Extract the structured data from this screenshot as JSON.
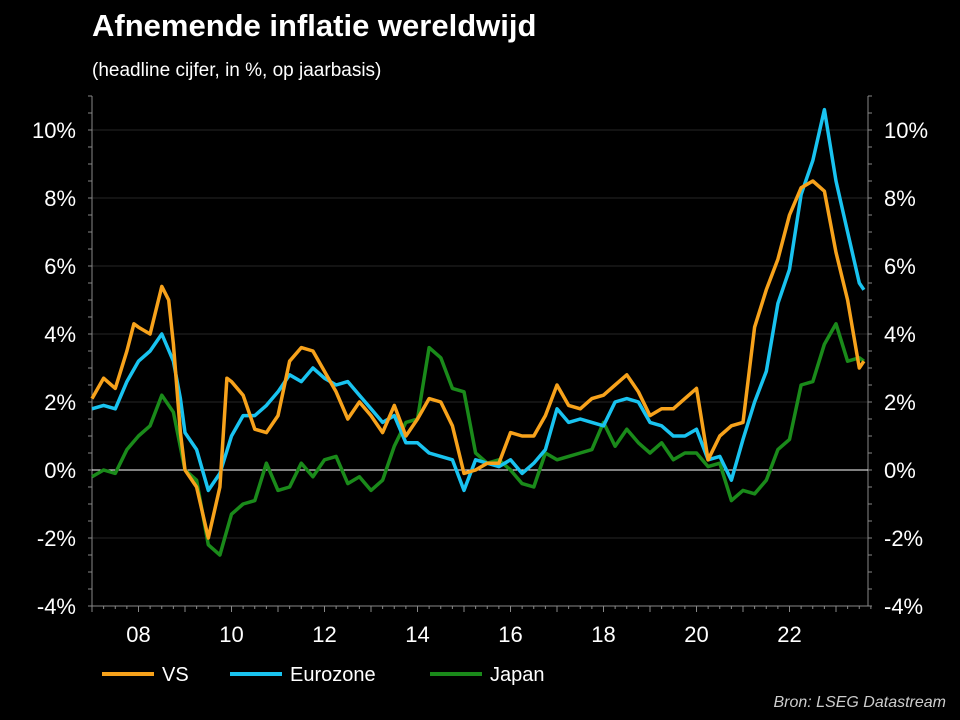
{
  "chart_data": {
    "type": "line",
    "title": "Afnemende inflatie wereldwijd",
    "subtitle": "(headline cijfer, in %, op jaarbasis)",
    "source": "Bron: LSEG Datastream",
    "xlabel": "",
    "ylabel": "",
    "xlim": [
      2007.0,
      2023.85
    ],
    "ylim": [
      -4,
      11
    ],
    "yticks": [
      -4,
      -2,
      0,
      2,
      4,
      6,
      8,
      10
    ],
    "ytick_labels": [
      "-4%",
      "-2%",
      "0%",
      "2%",
      "4%",
      "6%",
      "8%",
      "10%"
    ],
    "xticks": [
      2008,
      2010,
      2012,
      2014,
      2016,
      2018,
      2020,
      2022
    ],
    "xtick_labels": [
      "08",
      "10",
      "12",
      "14",
      "16",
      "18",
      "20",
      "22"
    ],
    "grid": true,
    "legend_position": "bottom",
    "series": [
      {
        "name": "VS",
        "color": "#f7a21b",
        "x": [
          2007.0,
          2007.25,
          2007.5,
          2007.75,
          2007.9,
          2008.0,
          2008.25,
          2008.5,
          2008.65,
          2008.75,
          2008.9,
          2009.0,
          2009.25,
          2009.5,
          2009.75,
          2009.9,
          2010.0,
          2010.25,
          2010.5,
          2010.75,
          2011.0,
          2011.25,
          2011.5,
          2011.75,
          2012.0,
          2012.25,
          2012.5,
          2012.75,
          2013.0,
          2013.25,
          2013.5,
          2013.75,
          2014.0,
          2014.25,
          2014.5,
          2014.75,
          2015.0,
          2015.25,
          2015.5,
          2015.75,
          2016.0,
          2016.25,
          2016.5,
          2016.75,
          2017.0,
          2017.25,
          2017.5,
          2017.75,
          2018.0,
          2018.25,
          2018.5,
          2018.75,
          2019.0,
          2019.25,
          2019.5,
          2019.75,
          2020.0,
          2020.25,
          2020.5,
          2020.75,
          2021.0,
          2021.25,
          2021.5,
          2021.75,
          2022.0,
          2022.25,
          2022.5,
          2022.75,
          2023.0,
          2023.25,
          2023.5,
          2023.6
        ],
        "values": [
          2.1,
          2.7,
          2.4,
          3.5,
          4.3,
          4.2,
          4.0,
          5.4,
          5.0,
          3.7,
          1.1,
          0.0,
          -0.5,
          -2.0,
          -0.5,
          2.7,
          2.6,
          2.2,
          1.2,
          1.1,
          1.6,
          3.2,
          3.6,
          3.5,
          2.9,
          2.3,
          1.5,
          2.0,
          1.6,
          1.1,
          1.9,
          1.0,
          1.5,
          2.1,
          2.0,
          1.3,
          -0.1,
          0.0,
          0.2,
          0.2,
          1.1,
          1.0,
          1.0,
          1.6,
          2.5,
          1.9,
          1.8,
          2.1,
          2.2,
          2.5,
          2.8,
          2.3,
          1.6,
          1.8,
          1.8,
          2.1,
          2.4,
          0.3,
          1.0,
          1.3,
          1.4,
          4.2,
          5.3,
          6.2,
          7.5,
          8.3,
          8.5,
          8.2,
          6.4,
          5.0,
          3.0,
          3.2
        ]
      },
      {
        "name": "Eurozone",
        "color": "#19c3f0",
        "x": [
          2007.0,
          2007.25,
          2007.5,
          2007.75,
          2008.0,
          2008.25,
          2008.5,
          2008.75,
          2008.9,
          2009.0,
          2009.25,
          2009.5,
          2009.75,
          2010.0,
          2010.25,
          2010.5,
          2010.75,
          2011.0,
          2011.25,
          2011.5,
          2011.75,
          2012.0,
          2012.25,
          2012.5,
          2012.75,
          2013.0,
          2013.25,
          2013.5,
          2013.75,
          2014.0,
          2014.25,
          2014.5,
          2014.75,
          2015.0,
          2015.25,
          2015.5,
          2015.75,
          2016.0,
          2016.25,
          2016.5,
          2016.75,
          2017.0,
          2017.25,
          2017.5,
          2017.75,
          2018.0,
          2018.25,
          2018.5,
          2018.75,
          2019.0,
          2019.25,
          2019.5,
          2019.75,
          2020.0,
          2020.25,
          2020.5,
          2020.75,
          2021.0,
          2021.25,
          2021.5,
          2021.75,
          2022.0,
          2022.25,
          2022.5,
          2022.75,
          2023.0,
          2023.25,
          2023.5,
          2023.6
        ],
        "values": [
          1.8,
          1.9,
          1.8,
          2.6,
          3.2,
          3.5,
          4.0,
          3.2,
          2.1,
          1.1,
          0.6,
          -0.6,
          -0.1,
          1.0,
          1.6,
          1.6,
          1.9,
          2.3,
          2.8,
          2.6,
          3.0,
          2.7,
          2.5,
          2.6,
          2.2,
          1.8,
          1.4,
          1.6,
          0.8,
          0.8,
          0.5,
          0.4,
          0.3,
          -0.6,
          0.3,
          0.2,
          0.1,
          0.3,
          -0.1,
          0.2,
          0.6,
          1.8,
          1.4,
          1.5,
          1.4,
          1.3,
          2.0,
          2.1,
          2.0,
          1.4,
          1.3,
          1.0,
          1.0,
          1.2,
          0.3,
          0.4,
          -0.3,
          0.9,
          2.0,
          2.9,
          4.9,
          5.9,
          8.1,
          9.1,
          10.6,
          8.5,
          7.0,
          5.5,
          5.3
        ]
      },
      {
        "name": "Japan",
        "color": "#1a8a1a",
        "x": [
          2007.0,
          2007.25,
          2007.5,
          2007.75,
          2008.0,
          2008.25,
          2008.5,
          2008.75,
          2009.0,
          2009.25,
          2009.5,
          2009.75,
          2010.0,
          2010.25,
          2010.5,
          2010.75,
          2011.0,
          2011.25,
          2011.5,
          2011.75,
          2012.0,
          2012.25,
          2012.5,
          2012.75,
          2013.0,
          2013.25,
          2013.5,
          2013.75,
          2014.0,
          2014.25,
          2014.5,
          2014.75,
          2015.0,
          2015.25,
          2015.5,
          2015.75,
          2016.0,
          2016.25,
          2016.5,
          2016.75,
          2017.0,
          2017.25,
          2017.5,
          2017.75,
          2018.0,
          2018.25,
          2018.5,
          2018.75,
          2019.0,
          2019.25,
          2019.5,
          2019.75,
          2020.0,
          2020.25,
          2020.5,
          2020.75,
          2021.0,
          2021.25,
          2021.5,
          2021.75,
          2022.0,
          2022.25,
          2022.5,
          2022.75,
          2023.0,
          2023.25,
          2023.5,
          2023.6
        ],
        "values": [
          -0.2,
          0.0,
          -0.1,
          0.6,
          1.0,
          1.3,
          2.2,
          1.7,
          0.0,
          -0.3,
          -2.2,
          -2.5,
          -1.3,
          -1.0,
          -0.9,
          0.2,
          -0.6,
          -0.5,
          0.2,
          -0.2,
          0.3,
          0.4,
          -0.4,
          -0.2,
          -0.6,
          -0.3,
          0.7,
          1.4,
          1.5,
          3.6,
          3.3,
          2.4,
          2.3,
          0.5,
          0.2,
          0.3,
          0.0,
          -0.4,
          -0.5,
          0.5,
          0.3,
          0.4,
          0.5,
          0.6,
          1.4,
          0.7,
          1.2,
          0.8,
          0.5,
          0.8,
          0.3,
          0.5,
          0.5,
          0.1,
          0.2,
          -0.9,
          -0.6,
          -0.7,
          -0.3,
          0.6,
          0.9,
          2.5,
          2.6,
          3.7,
          4.3,
          3.2,
          3.3,
          3.2
        ]
      }
    ]
  }
}
